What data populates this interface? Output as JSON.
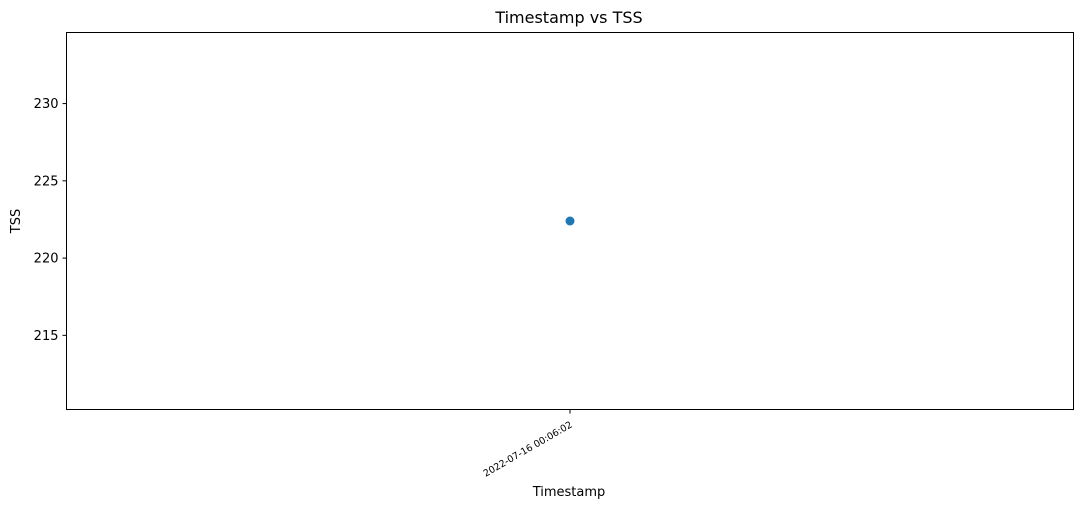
{
  "chart_data": {
    "type": "scatter",
    "title": "Timestamp vs TSS",
    "xlabel": "Timestamp",
    "ylabel": "TSS",
    "x": [
      "2022-07-16 00:06:02"
    ],
    "y": [
      222.4
    ],
    "xticks": [
      "2022-07-16 00:06:02"
    ],
    "yticks": [
      215,
      220,
      225,
      230
    ],
    "ylim": [
      210.2,
      234.6
    ],
    "grid": false,
    "legend": "none",
    "colors": {
      "point": "#1f77b4",
      "axes": "#000000"
    }
  }
}
